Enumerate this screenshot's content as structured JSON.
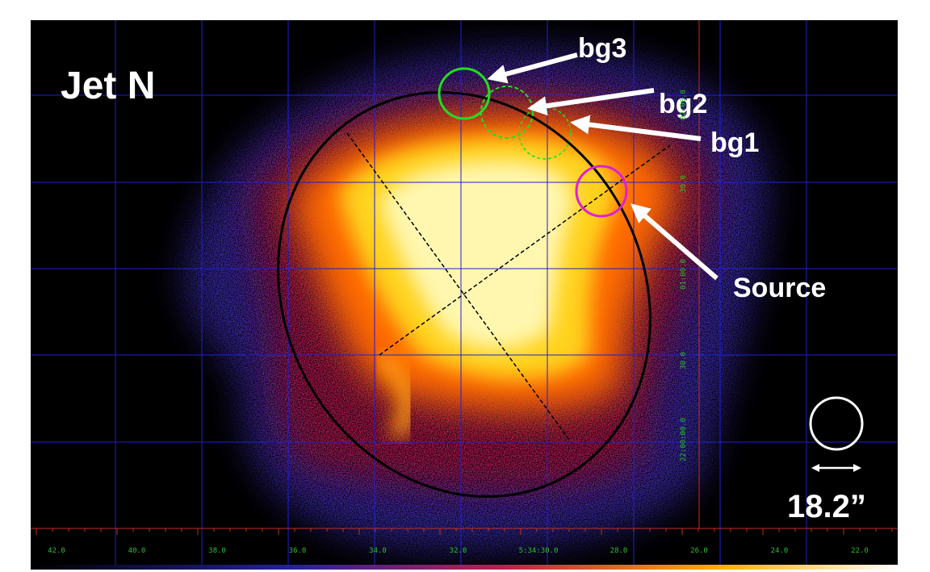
{
  "title": "Jet N",
  "regions": {
    "bg3": "bg3",
    "bg2": "bg2",
    "bg1": "bg1",
    "source": "Source"
  },
  "scale_label": "18.2”",
  "x_axis": {
    "ticks": [
      "42.0",
      "40.0",
      "38.0",
      "36.0",
      "34.0",
      "32.0",
      "5:34:30.0",
      "28.0",
      "26.0",
      "24.0",
      "22.0"
    ]
  },
  "y_axis": {
    "ticks": [
      "02:00.0",
      "30.0",
      "01:00.0",
      "30.0",
      "22:00:00.0"
    ]
  }
}
